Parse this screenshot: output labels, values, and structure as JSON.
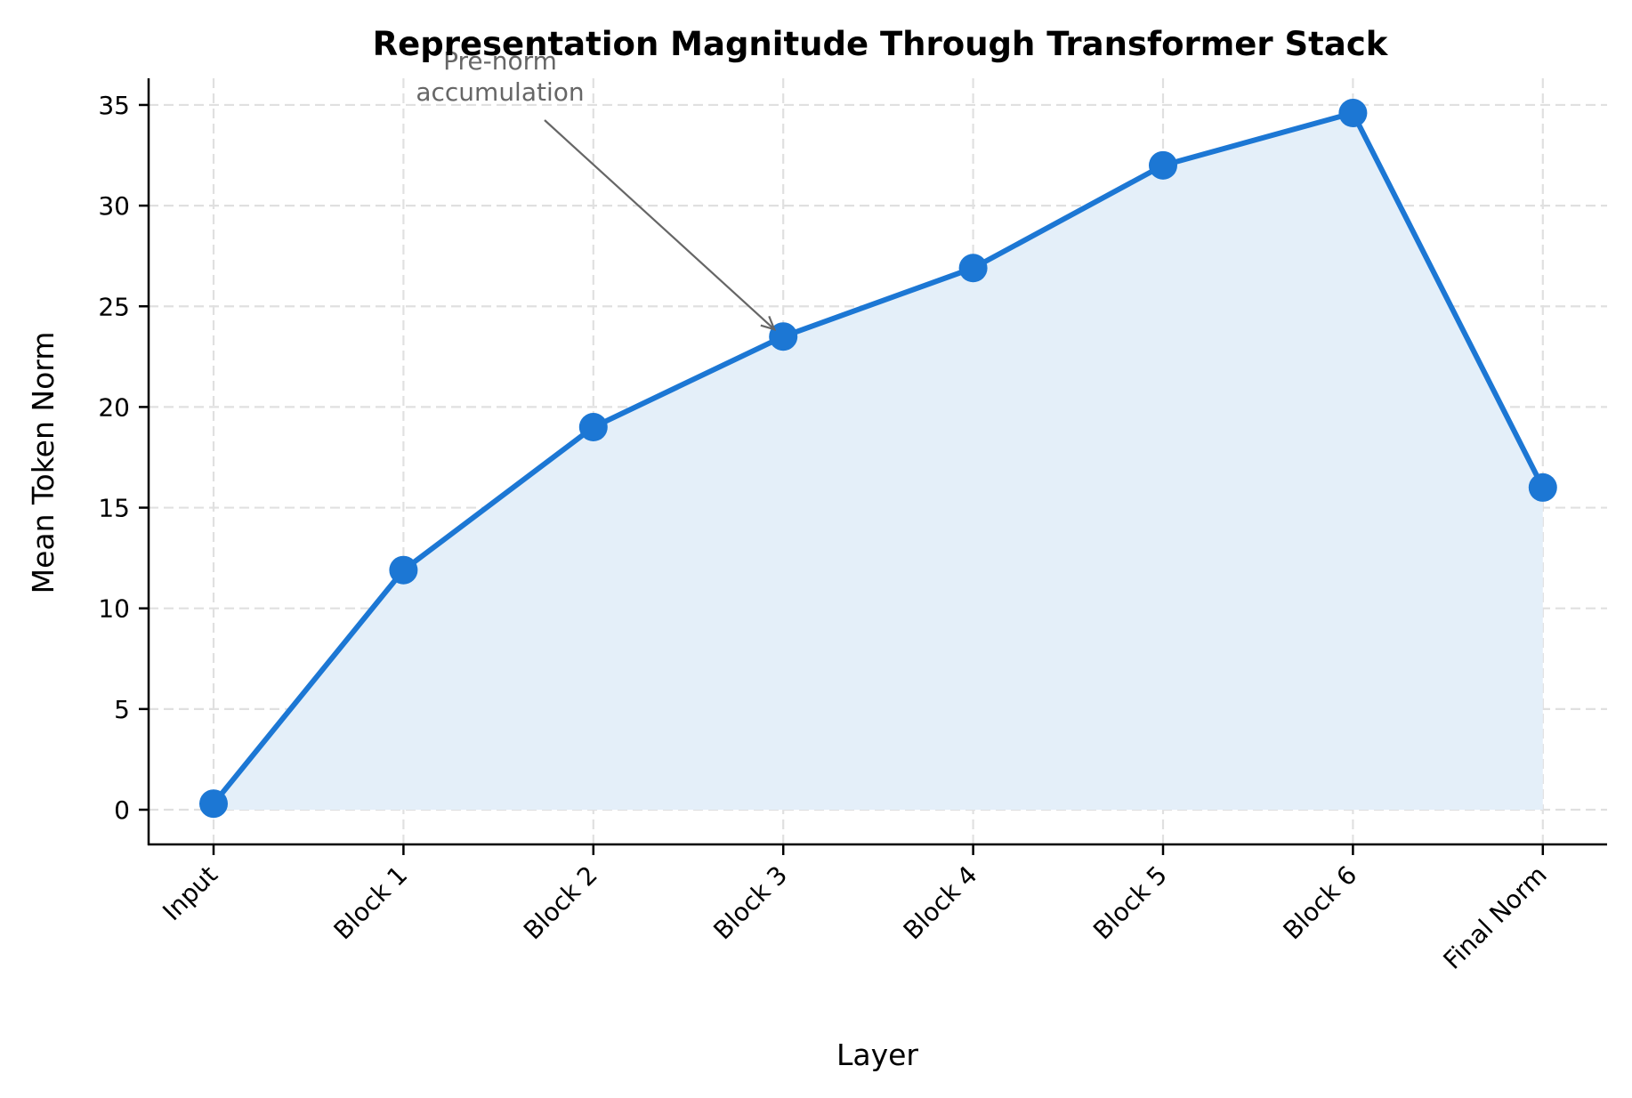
{
  "chart_data": {
    "type": "line",
    "title": "Representation Magnitude Through Transformer Stack",
    "xlabel": "Layer",
    "ylabel": "Mean Token Norm",
    "categories": [
      "Input",
      "Block 1",
      "Block 2",
      "Block 3",
      "Block 4",
      "Block 5",
      "Block 6",
      "Final Norm"
    ],
    "series": [
      {
        "name": "Mean Token Norm",
        "values": [
          0.3,
          11.9,
          19.0,
          23.5,
          26.9,
          32.0,
          34.6,
          16.0
        ],
        "color": "#1c77d4",
        "marker": "circle",
        "fill_under": true,
        "fill_color": "#e4eff9"
      }
    ],
    "ylim": [
      -1.7,
      36.3
    ],
    "yticks": [
      0,
      5,
      10,
      15,
      20,
      25,
      30,
      35
    ],
    "grid": true,
    "grid_style": "dashed",
    "legend": null,
    "annotations": [
      {
        "text_lines": [
          "Pre-norm",
          "accumulation"
        ],
        "target_category": "Block 3",
        "target_value": 23.5,
        "arrow": true,
        "color": "#666666"
      }
    ]
  }
}
